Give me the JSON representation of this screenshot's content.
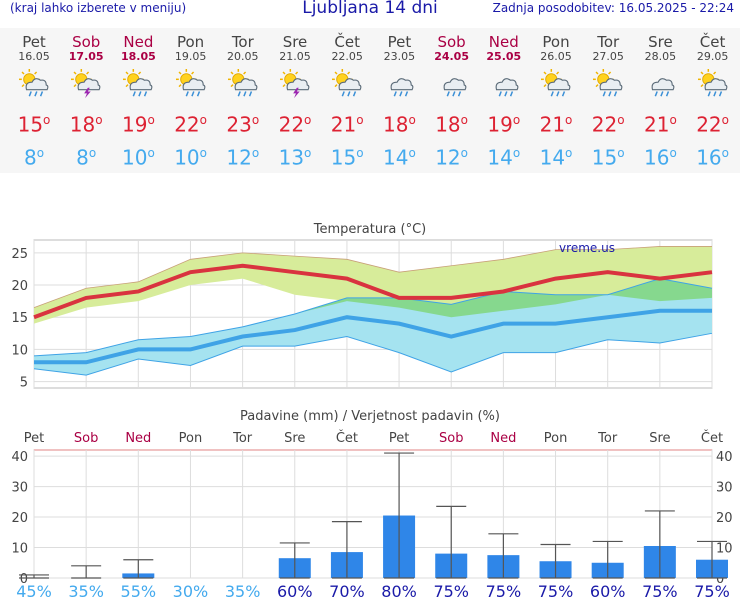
{
  "header": {
    "left_note": "(kraj lahko izberete v meniju)",
    "title": "Ljubljana 14 dni",
    "updated": "Zadnja posodobitev: 16.05.2025 - 22:24"
  },
  "days": [
    {
      "name": "Pet",
      "date": "16.05",
      "weekend": false,
      "icon": "sun-cloud-rain-icon",
      "tmax": "15",
      "tmin": "8"
    },
    {
      "name": "Sob",
      "date": "17.05",
      "weekend": true,
      "icon": "sun-cloud-thunder-icon",
      "tmax": "18",
      "tmin": "8"
    },
    {
      "name": "Ned",
      "date": "18.05",
      "weekend": true,
      "icon": "sun-cloud-rain-icon",
      "tmax": "19",
      "tmin": "10"
    },
    {
      "name": "Pon",
      "date": "19.05",
      "weekend": false,
      "icon": "sun-cloud-rain-icon",
      "tmax": "22",
      "tmin": "10"
    },
    {
      "name": "Tor",
      "date": "20.05",
      "weekend": false,
      "icon": "sun-cloud-rain-icon",
      "tmax": "23",
      "tmin": "12"
    },
    {
      "name": "Sre",
      "date": "21.05",
      "weekend": false,
      "icon": "sun-cloud-thunder-icon",
      "tmax": "22",
      "tmin": "13"
    },
    {
      "name": "Čet",
      "date": "22.05",
      "weekend": false,
      "icon": "sun-cloud-rain-icon",
      "tmax": "21",
      "tmin": "15"
    },
    {
      "name": "Pet",
      "date": "23.05",
      "weekend": false,
      "icon": "cloud-rain-icon",
      "tmax": "18",
      "tmin": "14"
    },
    {
      "name": "Sob",
      "date": "24.05",
      "weekend": true,
      "icon": "cloud-rain-icon",
      "tmax": "18",
      "tmin": "12"
    },
    {
      "name": "Ned",
      "date": "25.05",
      "weekend": true,
      "icon": "cloud-rain-icon",
      "tmax": "19",
      "tmin": "14"
    },
    {
      "name": "Pon",
      "date": "26.05",
      "weekend": false,
      "icon": "sun-cloud-rain-icon",
      "tmax": "21",
      "tmin": "14"
    },
    {
      "name": "Tor",
      "date": "27.05",
      "weekend": false,
      "icon": "sun-cloud-rain-icon",
      "tmax": "22",
      "tmin": "15"
    },
    {
      "name": "Sre",
      "date": "28.05",
      "weekend": false,
      "icon": "cloud-rain-icon",
      "tmax": "21",
      "tmin": "16"
    },
    {
      "name": "Čet",
      "date": "29.05",
      "weekend": false,
      "icon": "sun-cloud-rain-icon",
      "tmax": "22",
      "tmin": "16"
    }
  ],
  "chart_data": [
    {
      "type": "line",
      "title": "Temperatura (°C)",
      "watermark": "vreme.us",
      "x": [
        "Pet",
        "Sob",
        "Ned",
        "Pon",
        "Tor",
        "Sre",
        "Čet",
        "Pet",
        "Sob",
        "Ned",
        "Pon",
        "Tor",
        "Sre",
        "Čet"
      ],
      "ylim": [
        4,
        27
      ],
      "yticks": [
        5,
        10,
        15,
        20,
        25
      ],
      "grid": true,
      "series": [
        {
          "role": "max",
          "color": "#d9333f",
          "values": [
            15,
            18,
            19,
            22,
            23,
            22,
            21,
            18,
            18,
            19,
            21,
            22,
            21,
            22
          ]
        },
        {
          "role": "max_upper",
          "values": [
            16.5,
            19.5,
            20.5,
            24,
            25,
            24.5,
            24,
            22,
            23,
            24,
            25.5,
            25.5,
            26,
            26
          ]
        },
        {
          "role": "max_lower",
          "values": [
            14,
            16.5,
            17.5,
            20,
            21,
            18.5,
            17.5,
            16.5,
            15,
            16,
            17,
            18.5,
            17.5,
            18
          ]
        },
        {
          "role": "min",
          "color": "#3fa3e6",
          "values": [
            8,
            8,
            10,
            10,
            12,
            13,
            15,
            14,
            12,
            14,
            14,
            15,
            16,
            16
          ]
        },
        {
          "role": "min_upper",
          "values": [
            9,
            9.5,
            11.5,
            12,
            13.5,
            15.5,
            18,
            18,
            17,
            19,
            18.5,
            18.5,
            21,
            19.5
          ]
        },
        {
          "role": "min_lower",
          "values": [
            7,
            6,
            8.5,
            7.5,
            10.5,
            10.5,
            12,
            9.5,
            6.5,
            9.5,
            9.5,
            11.5,
            11,
            12.5
          ]
        }
      ]
    },
    {
      "type": "bar",
      "title": "Padavine (mm) / Verjetnost padavin (%)",
      "categories": [
        "Pet",
        "Sob",
        "Ned",
        "Pon",
        "Tor",
        "Sre",
        "Čet",
        "Pet",
        "Sob",
        "Ned",
        "Pon",
        "Tor",
        "Sre",
        "Čet"
      ],
      "ylim": [
        0,
        42
      ],
      "yticks": [
        0,
        10,
        20,
        30,
        40
      ],
      "grid": true,
      "values": [
        0,
        0,
        1.5,
        0,
        0,
        6.5,
        8.5,
        20.5,
        8,
        7.5,
        5.5,
        5,
        10.5,
        6
      ],
      "err_low": [
        0,
        0,
        0,
        0,
        0,
        0,
        0,
        0,
        0,
        0,
        0,
        0,
        0,
        0
      ],
      "err_high": [
        1,
        4,
        6,
        0,
        0,
        11.5,
        18.5,
        41,
        23.5,
        14.5,
        11,
        12,
        22,
        12
      ],
      "probability": [
        "45%",
        "35%",
        "55%",
        "30%",
        "35%",
        "60%",
        "70%",
        "80%",
        "75%",
        "75%",
        "75%",
        "60%",
        "75%",
        "75%"
      ],
      "bar_color": "#2f86e8"
    }
  ],
  "colors": {
    "header_text": "#1a1aa8",
    "weekend": "#aa0044",
    "tmax": "#dd2233",
    "tmin": "#44aaee",
    "max_band": "#d7ec9a",
    "min_band": "#a5e3f0",
    "overlap_band": "#86d88e",
    "prob_low": "#44aaee",
    "prob_high": "#1a1aa8"
  }
}
